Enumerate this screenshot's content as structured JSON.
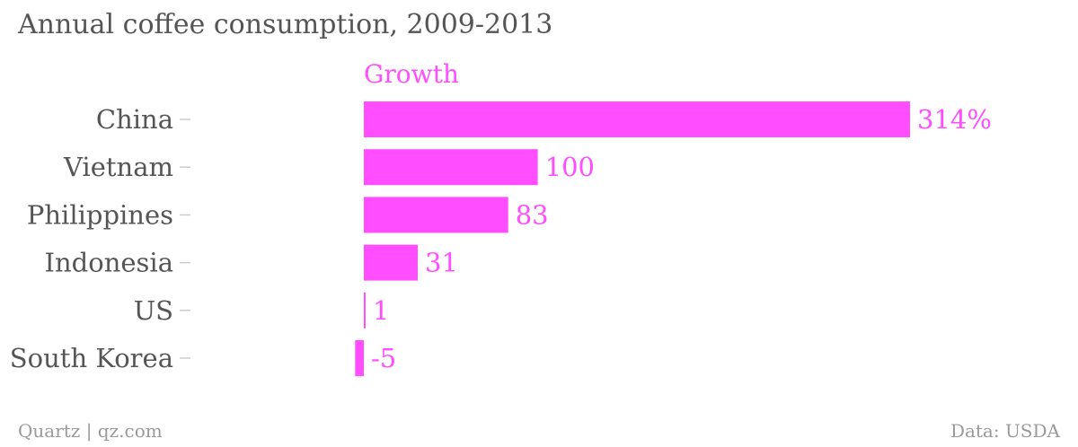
{
  "title": "Annual coffee consumption, 2009-2013",
  "footer": {
    "source_left": "Quartz | qz.com",
    "source_right": "Data: USDA"
  },
  "colors": {
    "bar": "#ff4dff",
    "label": "#555555",
    "footer": "#9a9a9a"
  },
  "chart_data": {
    "type": "bar",
    "orientation": "horizontal",
    "categories": [
      "China",
      "Vietnam",
      "Philippines",
      "Indonesia",
      "US",
      "South Korea"
    ],
    "series": [
      {
        "name": "Growth",
        "values": [
          314,
          100,
          83,
          31,
          1,
          -5
        ],
        "labels": [
          "314%",
          "100",
          "83",
          "31",
          "1",
          "-5"
        ]
      }
    ],
    "xlim": [
      -5,
      314
    ],
    "grid": false,
    "legend": "top"
  }
}
